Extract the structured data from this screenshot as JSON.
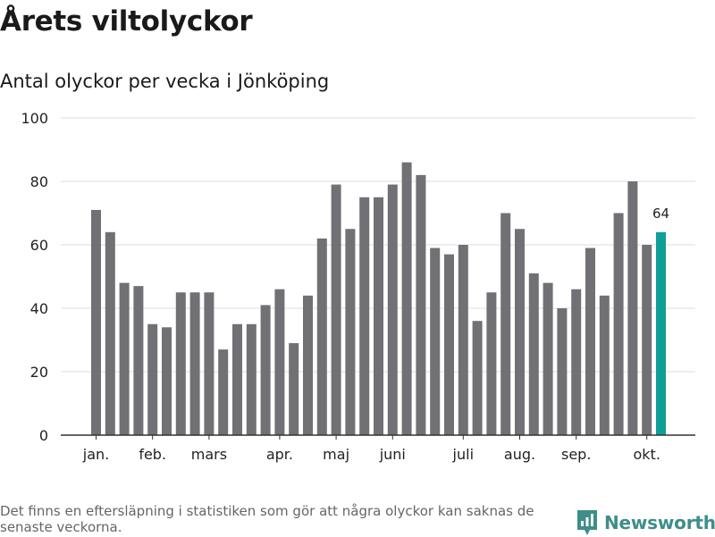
{
  "title": "Årets viltolyckor",
  "subtitle": "Antal olyckor per vecka i Jönköping",
  "footnote": "Det finns en eftersläpning i statistiken som gör att några olyckor kan saknas de senaste veckorna.",
  "brand": {
    "name": "Newsworthy",
    "icon": "newsworthy-logo-icon",
    "color": "#3e8e8a"
  },
  "colors": {
    "bar": "#717075",
    "highlight": "#0f9e98",
    "grid": "#dddddd",
    "axis": "#333333"
  },
  "chart_data": {
    "type": "bar",
    "title": "Årets viltolyckor",
    "subtitle": "Antal olyckor per vecka i Jönköping",
    "xlabel": "",
    "ylabel": "",
    "ylim": [
      0,
      100
    ],
    "yticks": [
      0,
      20,
      40,
      60,
      80,
      100
    ],
    "grid": true,
    "values": [
      71,
      64,
      48,
      47,
      35,
      34,
      45,
      45,
      45,
      27,
      35,
      35,
      41,
      46,
      29,
      44,
      62,
      79,
      65,
      75,
      75,
      79,
      86,
      82,
      59,
      57,
      60,
      36,
      45,
      70,
      65,
      51,
      48,
      40,
      46,
      59,
      44,
      70,
      80,
      60,
      64
    ],
    "month_labels": [
      {
        "label": "jan.",
        "bar_index": 0
      },
      {
        "label": "feb.",
        "bar_index": 4
      },
      {
        "label": "mars",
        "bar_index": 8
      },
      {
        "label": "apr.",
        "bar_index": 13
      },
      {
        "label": "maj",
        "bar_index": 17
      },
      {
        "label": "juni",
        "bar_index": 21
      },
      {
        "label": "juli",
        "bar_index": 26
      },
      {
        "label": "aug.",
        "bar_index": 30
      },
      {
        "label": "sep.",
        "bar_index": 34
      },
      {
        "label": "okt.",
        "bar_index": 39
      }
    ],
    "highlight_index": 40,
    "highlight_label": "64"
  }
}
